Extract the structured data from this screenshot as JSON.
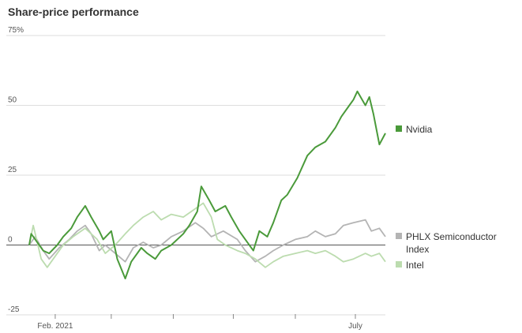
{
  "chart_data": {
    "type": "line",
    "title": "Share-price performance",
    "xlabel": "",
    "ylabel": "",
    "ylim": [
      -25,
      75
    ],
    "y_ticks": [
      {
        "value": 75,
        "label": "75%"
      },
      {
        "value": 50,
        "label": "50"
      },
      {
        "value": 25,
        "label": "25"
      },
      {
        "value": 0,
        "label": "0"
      },
      {
        "value": -25,
        "label": "-25"
      }
    ],
    "x_range": [
      "2021-01-19",
      "2021-07-16"
    ],
    "x_tick_marks": [
      "2021-02-01",
      "2021-03-01",
      "2021-04-01",
      "2021-05-01",
      "2021-06-01",
      "2021-07-01"
    ],
    "x_tick_labels": [
      {
        "date": "2021-02-01",
        "label": "Feb. 2021"
      },
      {
        "date": "2021-07-01",
        "label": "July"
      }
    ],
    "grid": true,
    "legend": "right, at line ends",
    "series": [
      {
        "name": "PHLX Semiconductor Index",
        "color": "#b4b4b4",
        "legend_lines": [
          "PHLX Semiconductor",
          "Index"
        ],
        "points": [
          [
            "2021-01-19",
            0
          ],
          [
            "2021-01-22",
            3
          ],
          [
            "2021-01-26",
            -2
          ],
          [
            "2021-01-29",
            -5
          ],
          [
            "2021-02-03",
            -1
          ],
          [
            "2021-02-08",
            2
          ],
          [
            "2021-02-12",
            5
          ],
          [
            "2021-02-16",
            7
          ],
          [
            "2021-02-19",
            4
          ],
          [
            "2021-02-23",
            -2
          ],
          [
            "2021-02-26",
            0
          ],
          [
            "2021-03-03",
            -3
          ],
          [
            "2021-03-08",
            -6
          ],
          [
            "2021-03-12",
            -1
          ],
          [
            "2021-03-17",
            1
          ],
          [
            "2021-03-22",
            -1
          ],
          [
            "2021-03-26",
            0
          ],
          [
            "2021-03-31",
            3
          ],
          [
            "2021-04-06",
            5
          ],
          [
            "2021-04-12",
            8
          ],
          [
            "2021-04-16",
            6
          ],
          [
            "2021-04-20",
            3
          ],
          [
            "2021-04-26",
            5
          ],
          [
            "2021-05-03",
            2
          ],
          [
            "2021-05-07",
            -2
          ],
          [
            "2021-05-12",
            -6
          ],
          [
            "2021-05-17",
            -4
          ],
          [
            "2021-05-21",
            -2
          ],
          [
            "2021-05-26",
            0
          ],
          [
            "2021-06-01",
            2
          ],
          [
            "2021-06-07",
            3
          ],
          [
            "2021-06-11",
            5
          ],
          [
            "2021-06-16",
            3
          ],
          [
            "2021-06-21",
            4
          ],
          [
            "2021-06-25",
            7
          ],
          [
            "2021-06-30",
            8
          ],
          [
            "2021-07-06",
            9
          ],
          [
            "2021-07-09",
            5
          ],
          [
            "2021-07-13",
            6
          ],
          [
            "2021-07-16",
            3
          ]
        ]
      },
      {
        "name": "Intel",
        "color": "#bcdcaf",
        "legend_lines": [
          "Intel"
        ],
        "points": [
          [
            "2021-01-19",
            0
          ],
          [
            "2021-01-21",
            7
          ],
          [
            "2021-01-25",
            -5
          ],
          [
            "2021-01-28",
            -8
          ],
          [
            "2021-02-01",
            -4
          ],
          [
            "2021-02-05",
            0
          ],
          [
            "2021-02-10",
            3
          ],
          [
            "2021-02-16",
            6
          ],
          [
            "2021-02-22",
            2
          ],
          [
            "2021-02-26",
            -3
          ],
          [
            "2021-03-03",
            0
          ],
          [
            "2021-03-08",
            4
          ],
          [
            "2021-03-12",
            7
          ],
          [
            "2021-03-17",
            10
          ],
          [
            "2021-03-22",
            12
          ],
          [
            "2021-03-26",
            9
          ],
          [
            "2021-03-31",
            11
          ],
          [
            "2021-04-06",
            10
          ],
          [
            "2021-04-12",
            13
          ],
          [
            "2021-04-16",
            15
          ],
          [
            "2021-04-20",
            10
          ],
          [
            "2021-04-23",
            2
          ],
          [
            "2021-04-27",
            0
          ],
          [
            "2021-05-03",
            -2
          ],
          [
            "2021-05-07",
            -3
          ],
          [
            "2021-05-12",
            -5
          ],
          [
            "2021-05-17",
            -8
          ],
          [
            "2021-05-21",
            -6
          ],
          [
            "2021-05-26",
            -4
          ],
          [
            "2021-06-01",
            -3
          ],
          [
            "2021-06-07",
            -2
          ],
          [
            "2021-06-11",
            -3
          ],
          [
            "2021-06-16",
            -2
          ],
          [
            "2021-06-21",
            -4
          ],
          [
            "2021-06-25",
            -6
          ],
          [
            "2021-06-30",
            -5
          ],
          [
            "2021-07-06",
            -3
          ],
          [
            "2021-07-09",
            -4
          ],
          [
            "2021-07-13",
            -3
          ],
          [
            "2021-07-16",
            -6
          ]
        ]
      },
      {
        "name": "Nvidia",
        "color": "#4a9a3a",
        "legend_lines": [
          "Nvidia"
        ],
        "points": [
          [
            "2021-01-19",
            0
          ],
          [
            "2021-01-20",
            4
          ],
          [
            "2021-01-22",
            2
          ],
          [
            "2021-01-26",
            -2
          ],
          [
            "2021-01-29",
            -3
          ],
          [
            "2021-02-02",
            0
          ],
          [
            "2021-02-05",
            3
          ],
          [
            "2021-02-09",
            6
          ],
          [
            "2021-02-12",
            10
          ],
          [
            "2021-02-16",
            14
          ],
          [
            "2021-02-19",
            10
          ],
          [
            "2021-02-23",
            5
          ],
          [
            "2021-02-25",
            2
          ],
          [
            "2021-03-01",
            5
          ],
          [
            "2021-03-04",
            -5
          ],
          [
            "2021-03-08",
            -12
          ],
          [
            "2021-03-11",
            -6
          ],
          [
            "2021-03-16",
            -1
          ],
          [
            "2021-03-19",
            -3
          ],
          [
            "2021-03-23",
            -5
          ],
          [
            "2021-03-26",
            -2
          ],
          [
            "2021-03-31",
            0
          ],
          [
            "2021-04-06",
            4
          ],
          [
            "2021-04-09",
            7
          ],
          [
            "2021-04-13",
            12
          ],
          [
            "2021-04-15",
            21
          ],
          [
            "2021-04-19",
            16
          ],
          [
            "2021-04-22",
            12
          ],
          [
            "2021-04-27",
            14
          ],
          [
            "2021-04-30",
            10
          ],
          [
            "2021-05-04",
            5
          ],
          [
            "2021-05-07",
            2
          ],
          [
            "2021-05-11",
            -2
          ],
          [
            "2021-05-14",
            5
          ],
          [
            "2021-05-18",
            3
          ],
          [
            "2021-05-21",
            8
          ],
          [
            "2021-05-25",
            16
          ],
          [
            "2021-05-28",
            18
          ],
          [
            "2021-06-02",
            24
          ],
          [
            "2021-06-07",
            32
          ],
          [
            "2021-06-11",
            35
          ],
          [
            "2021-06-16",
            37
          ],
          [
            "2021-06-21",
            42
          ],
          [
            "2021-06-24",
            46
          ],
          [
            "2021-06-28",
            50
          ],
          [
            "2021-06-30",
            52
          ],
          [
            "2021-07-02",
            55
          ],
          [
            "2021-07-06",
            50
          ],
          [
            "2021-07-08",
            53
          ],
          [
            "2021-07-10",
            47
          ],
          [
            "2021-07-13",
            36
          ],
          [
            "2021-07-16",
            40
          ]
        ]
      }
    ]
  }
}
